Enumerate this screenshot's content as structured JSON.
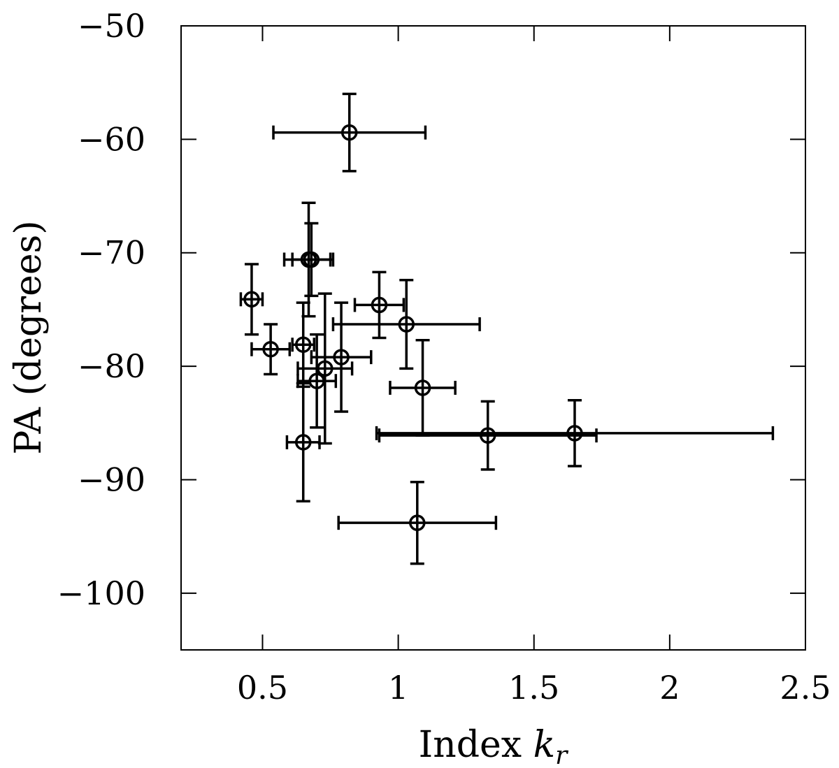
{
  "chart_data": {
    "type": "scatter",
    "xlabel_main": "Index ",
    "xlabel_var": "k",
    "xlabel_sub": "r",
    "ylabel": "PA (degrees)",
    "xlim": [
      0.2,
      2.5
    ],
    "ylim": [
      -105,
      -50
    ],
    "xticks": [
      0.5,
      1,
      1.5,
      2,
      2.5
    ],
    "xtick_labels": [
      "0.5",
      "1",
      "1.5",
      "2",
      "2.5"
    ],
    "yticks": [
      -50,
      -60,
      -70,
      -80,
      -90,
      -100
    ],
    "ytick_labels": [
      "−50",
      "−60",
      "−70",
      "−80",
      "−90",
      "−100"
    ],
    "grid": false,
    "marker": "open-circle",
    "points": [
      {
        "x": 0.82,
        "y": -59.4,
        "xerr": 0.28,
        "yerr": 3.4
      },
      {
        "x": 0.46,
        "y": -74.1,
        "xerr": 0.04,
        "yerr": 3.1
      },
      {
        "x": 0.68,
        "y": -70.6,
        "xerr": 0.07,
        "yerr": 3.2
      },
      {
        "x": 0.67,
        "y": -70.6,
        "xerr": 0.09,
        "yerr": 5.0
      },
      {
        "x": 0.53,
        "y": -78.5,
        "xerr": 0.07,
        "yerr": 2.2
      },
      {
        "x": 0.65,
        "y": -78.1,
        "xerr": 0.04,
        "yerr": 3.7
      },
      {
        "x": 0.7,
        "y": -81.3,
        "xerr": 0.07,
        "yerr": 4.1
      },
      {
        "x": 0.73,
        "y": -80.2,
        "xerr": 0.1,
        "yerr": 6.6
      },
      {
        "x": 0.79,
        "y": -79.2,
        "xerr": 0.11,
        "yerr": 4.8
      },
      {
        "x": 0.93,
        "y": -74.6,
        "xerr": 0.09,
        "yerr": 2.9
      },
      {
        "x": 1.03,
        "y": -76.3,
        "xerr": 0.27,
        "yerr": 3.9
      },
      {
        "x": 1.09,
        "y": -81.9,
        "xerr": 0.12,
        "yerr": 4.2
      },
      {
        "x": 0.65,
        "y": -86.7,
        "xerr": 0.06,
        "yerr": 5.2
      },
      {
        "x": 1.33,
        "y": -86.1,
        "xerr": 0.4,
        "yerr": 3.0
      },
      {
        "x": 1.65,
        "y": -85.9,
        "xerr": 0.73,
        "yerr": 2.9
      },
      {
        "x": 1.07,
        "y": -93.8,
        "xerr": 0.29,
        "yerr": 3.6
      }
    ]
  }
}
